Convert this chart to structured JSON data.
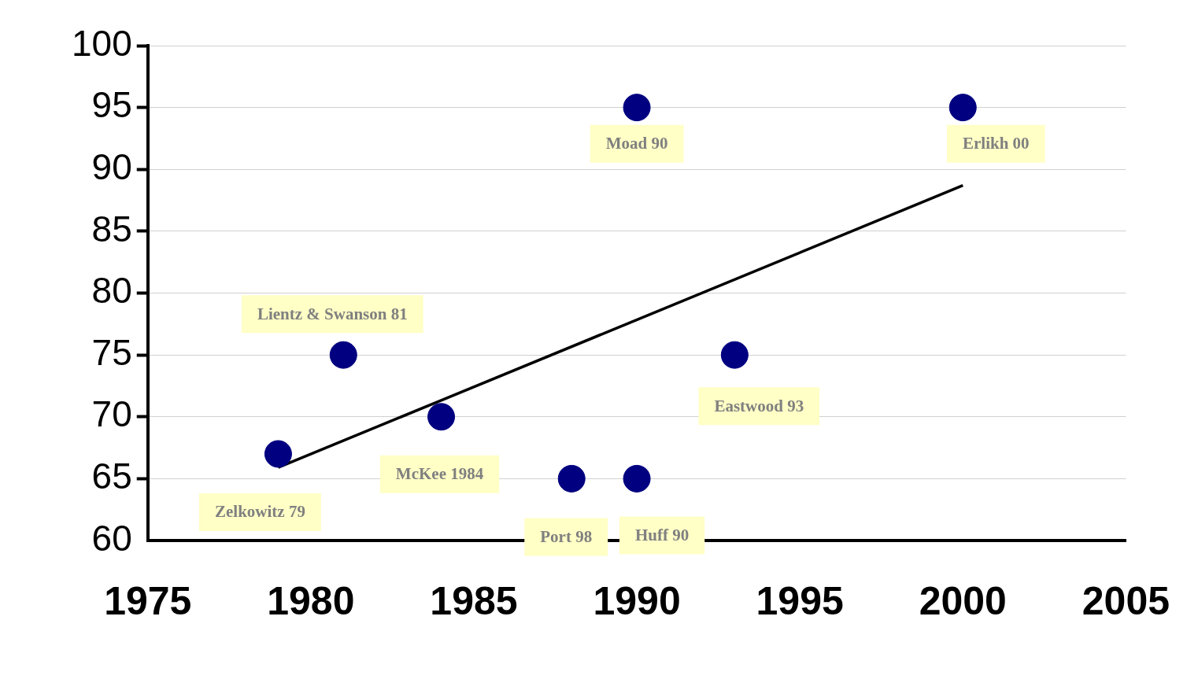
{
  "chart_data": {
    "type": "scatter",
    "series": [
      {
        "type": "scatter",
        "color": "#000080",
        "x": [
          1979,
          1981,
          1984,
          1988,
          1990,
          1990,
          1993,
          2000
        ],
        "values": [
          67,
          75,
          70,
          65,
          65,
          95,
          75,
          95
        ]
      },
      {
        "type": "line",
        "color": "#000000",
        "x": [
          1979,
          2000
        ],
        "values": [
          65.9,
          88.7
        ],
        "marker": "none"
      }
    ],
    "xlim": [
      1975,
      2005
    ],
    "xticks": [
      1975,
      1980,
      1985,
      1990,
      1995,
      2000,
      2005
    ],
    "ylim": [
      60,
      100
    ],
    "yticks": [
      60,
      65,
      70,
      75,
      80,
      85,
      90,
      95,
      100
    ],
    "grid": "y",
    "legend": false,
    "marker": "circle",
    "annotations": [
      {
        "text": "Zelkowitz 79",
        "x": 1979,
        "y": 67
      },
      {
        "text": "Lientz & Swanson 81",
        "x": 1981,
        "y": 75
      },
      {
        "text": "McKee 1984",
        "x": 1984,
        "y": 70
      },
      {
        "text": "Port 98",
        "x": 1988,
        "y": 65
      },
      {
        "text": "Huff 90",
        "x": 1990,
        "y": 65
      },
      {
        "text": "Moad 90",
        "x": 1990,
        "y": 95
      },
      {
        "text": "Eastwood 93",
        "x": 1993,
        "y": 75
      },
      {
        "text": "Erlikh 00",
        "x": 2000,
        "y": 95
      }
    ]
  }
}
